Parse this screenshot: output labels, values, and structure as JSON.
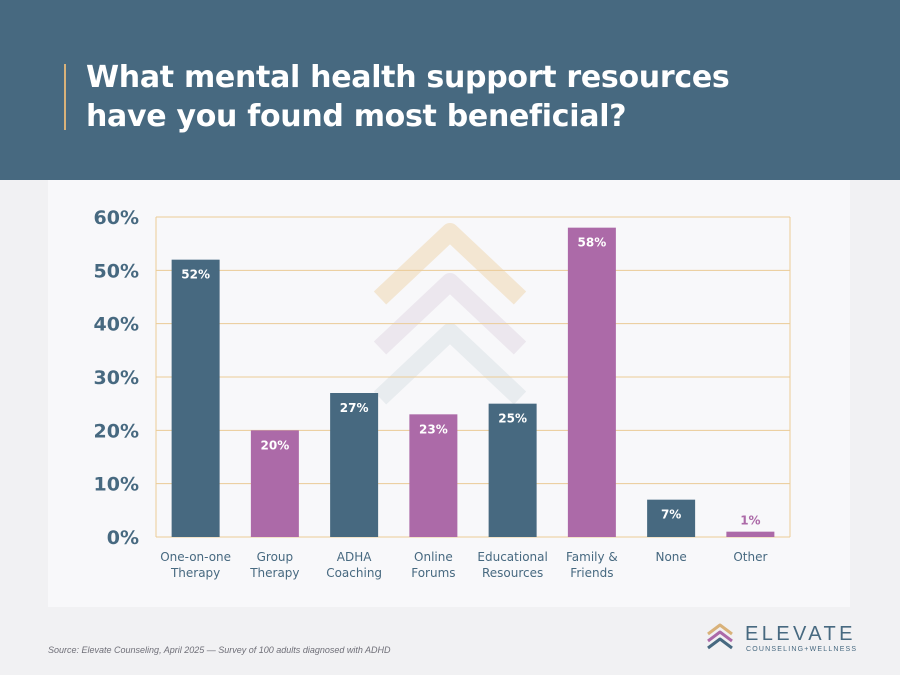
{
  "header": {
    "title_line1": "What mental health support resources",
    "title_line2": "have you found most beneficial?"
  },
  "chart_data": {
    "type": "bar",
    "title": "What mental health support resources have you found most beneficial?",
    "categories": [
      [
        "One-on-one",
        "Therapy"
      ],
      [
        "Group",
        "Therapy"
      ],
      [
        "ADHA",
        "Coaching"
      ],
      [
        "Online",
        "Forums"
      ],
      [
        "Educational",
        "Resources"
      ],
      [
        "Family &",
        "Friends"
      ],
      [
        "None"
      ],
      [
        "Other"
      ]
    ],
    "values": [
      52,
      20,
      27,
      23,
      25,
      58,
      7,
      1
    ],
    "value_labels": [
      "52%",
      "20%",
      "27%",
      "23%",
      "25%",
      "58%",
      "7%",
      "1%"
    ],
    "bar_colors": [
      "#476980",
      "#ac6aa8",
      "#476980",
      "#ac6aa8",
      "#476980",
      "#ac6aa8",
      "#476980",
      "#ac6aa8"
    ],
    "ylim": [
      0,
      60
    ],
    "yticks": [
      0,
      10,
      20,
      30,
      40,
      50,
      60
    ],
    "ytick_labels": [
      "0%",
      "10%",
      "20%",
      "30%",
      "40%",
      "50%",
      "60%"
    ],
    "grid": true,
    "grid_color": "#ebcb96",
    "xlabel": "",
    "ylabel": ""
  },
  "colors": {
    "header_bg": "#476980",
    "accent_gold": "#d9b27a",
    "bar_blue": "#476980",
    "bar_purple": "#ac6aa8",
    "axis_text": "#476980"
  },
  "footer": {
    "source": "Source: Elevate Counseling, April 2025 — Survey of 100 adults diagnosed with ADHD"
  },
  "logo": {
    "name": "ELEVATE",
    "tagline": "COUNSELING+WELLNESS",
    "icon": "stacked-chevrons-icon"
  }
}
